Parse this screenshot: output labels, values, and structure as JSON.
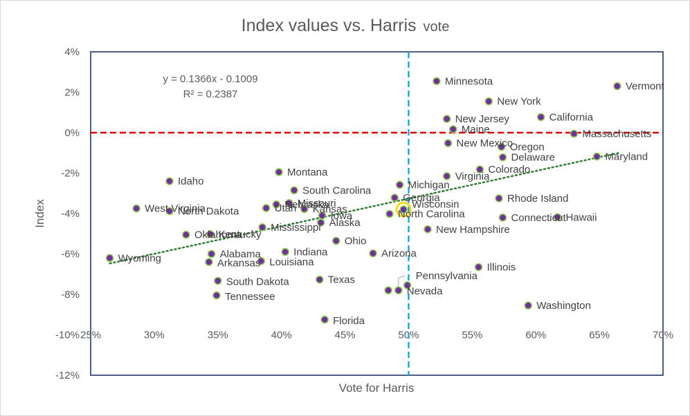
{
  "chart_data": {
    "type": "scatter",
    "title": "Index values vs. Harris",
    "title_suffix": "vote",
    "xlabel": "Vote for Harris",
    "ylabel": "Index",
    "xlim": [
      0.25,
      0.7
    ],
    "ylim": [
      -0.12,
      0.04
    ],
    "x_ticks": [
      0.25,
      0.3,
      0.35,
      0.4,
      0.45,
      0.5,
      0.55,
      0.6,
      0.65,
      0.7
    ],
    "y_ticks": [
      0.04,
      0.02,
      0.0,
      -0.02,
      -0.04,
      -0.06,
      -0.08,
      -0.1,
      -0.12
    ],
    "x_tick_labels": [
      "25%",
      "30%",
      "35%",
      "40%",
      "45%",
      "50%",
      "55%",
      "60%",
      "65%",
      "70%"
    ],
    "y_tick_labels": [
      "4%",
      "2%",
      "0%",
      "-2%",
      "-4%",
      "-6%",
      "-8%",
      "-10%",
      "-12%"
    ],
    "grid": false,
    "reference_lines": [
      {
        "axis": "y",
        "value": 0.0,
        "color": "#e00000",
        "style": "dashed"
      },
      {
        "axis": "x",
        "value": 0.5,
        "color": "#1ea8e0",
        "style": "dashed"
      }
    ],
    "trendline": {
      "equation": "y = 0.1366x - 0.1009",
      "r2": "R² = 0.2387",
      "slope": 0.1366,
      "intercept": -0.1009,
      "x_range": [
        0.265,
        0.665
      ],
      "color": "#2e7d32"
    },
    "marker_color": "#7030a0",
    "marker_outline": "#92d050",
    "highlight": {
      "name": "Wisconsin",
      "ring_color": "#ffd700"
    },
    "points": [
      {
        "name": "Vermont",
        "x": 0.664,
        "y": 0.023
      },
      {
        "name": "Minnesota",
        "x": 0.522,
        "y": 0.0255
      },
      {
        "name": "New York",
        "x": 0.563,
        "y": 0.0155
      },
      {
        "name": "California",
        "x": 0.604,
        "y": 0.0077
      },
      {
        "name": "New Jersey",
        "x": 0.53,
        "y": 0.0068
      },
      {
        "name": "Maine",
        "x": 0.535,
        "y": 0.0017
      },
      {
        "name": "Massachusetts",
        "x": 0.63,
        "y": -0.0005
      },
      {
        "name": "New Mexico",
        "x": 0.531,
        "y": -0.0052
      },
      {
        "name": "Oregon",
        "x": 0.573,
        "y": -0.007
      },
      {
        "name": "Delaware",
        "x": 0.574,
        "y": -0.0122
      },
      {
        "name": "Maryland",
        "x": 0.648,
        "y": -0.0118
      },
      {
        "name": "Colorado",
        "x": 0.556,
        "y": -0.0182
      },
      {
        "name": "Virginia",
        "x": 0.53,
        "y": -0.0215
      },
      {
        "name": "Montana",
        "x": 0.398,
        "y": -0.0195
      },
      {
        "name": "Idaho",
        "x": 0.312,
        "y": -0.024
      },
      {
        "name": "Michigan",
        "x": 0.493,
        "y": -0.0258
      },
      {
        "name": "South Carolina",
        "x": 0.41,
        "y": -0.0285
      },
      {
        "name": "Georgia",
        "x": 0.489,
        "y": -0.0322
      },
      {
        "name": "Rhode Island",
        "x": 0.571,
        "y": -0.0325
      },
      {
        "name": "Nebraska",
        "x": 0.396,
        "y": -0.0355
      },
      {
        "name": "Missouri",
        "x": 0.406,
        "y": -0.0348
      },
      {
        "name": "Utah",
        "x": 0.388,
        "y": -0.0373
      },
      {
        "name": "Kansas",
        "x": 0.418,
        "y": -0.0378
      },
      {
        "name": "West Virginia",
        "x": 0.286,
        "y": -0.0375
      },
      {
        "name": "North Dakota",
        "x": 0.312,
        "y": -0.0388
      },
      {
        "name": "Wisconsin",
        "x": 0.496,
        "y": -0.038
      },
      {
        "name": "Iowa",
        "x": 0.432,
        "y": -0.041
      },
      {
        "name": "North Carolina",
        "x": 0.485,
        "y": -0.0402
      },
      {
        "name": "Connecticut",
        "x": 0.574,
        "y": -0.042
      },
      {
        "name": "Hawaii",
        "x": 0.617,
        "y": -0.0418
      },
      {
        "name": "Alaska",
        "x": 0.431,
        "y": -0.0445
      },
      {
        "name": "Mississippi",
        "x": 0.385,
        "y": -0.0468
      },
      {
        "name": "New Hampshire",
        "x": 0.515,
        "y": -0.0478
      },
      {
        "name": "Oklahoma",
        "x": 0.325,
        "y": -0.0505
      },
      {
        "name": "Kentucky",
        "x": 0.344,
        "y": -0.0502
      },
      {
        "name": "Ohio",
        "x": 0.443,
        "y": -0.0535
      },
      {
        "name": "Indiana",
        "x": 0.403,
        "y": -0.059
      },
      {
        "name": "Alabama",
        "x": 0.345,
        "y": -0.06
      },
      {
        "name": "Arizona",
        "x": 0.472,
        "y": -0.0597
      },
      {
        "name": "Wyoming",
        "x": 0.265,
        "y": -0.062
      },
      {
        "name": "Louisiana",
        "x": 0.384,
        "y": -0.0635
      },
      {
        "name": "Arkansas",
        "x": 0.343,
        "y": -0.064
      },
      {
        "name": "Illinois",
        "x": 0.555,
        "y": -0.0665
      },
      {
        "name": "Texas",
        "x": 0.43,
        "y": -0.0727
      },
      {
        "name": "South Dakota",
        "x": 0.35,
        "y": -0.0733
      },
      {
        "name": "Pennsylvania",
        "x": 0.499,
        "y": -0.0755
      },
      {
        "name": "Nevada",
        "x": 0.484,
        "y": -0.078
      },
      {
        "name": "Nevada2",
        "x": 0.492,
        "y": -0.078
      },
      {
        "name": "Tennessee",
        "x": 0.349,
        "y": -0.0805
      },
      {
        "name": "Washington",
        "x": 0.594,
        "y": -0.0855
      },
      {
        "name": "Florida",
        "x": 0.434,
        "y": -0.0925
      }
    ],
    "labels": [
      {
        "text": "Vermont",
        "x": 0.664,
        "y": 0.023,
        "anchor": "right"
      },
      {
        "text": "Minnesota",
        "x": 0.522,
        "y": 0.0255,
        "anchor": "right"
      },
      {
        "text": "New York",
        "x": 0.563,
        "y": 0.0155,
        "anchor": "right"
      },
      {
        "text": "California",
        "x": 0.604,
        "y": 0.0077,
        "anchor": "right"
      },
      {
        "text": "New Jersey",
        "x": 0.53,
        "y": 0.0068,
        "anchor": "right"
      },
      {
        "text": "Maine",
        "x": 0.535,
        "y": 0.0017,
        "anchor": "right"
      },
      {
        "text": "Massachusetts",
        "x": 0.63,
        "y": -0.0005,
        "anchor": "right"
      },
      {
        "text": "New Mexico",
        "x": 0.531,
        "y": -0.0052,
        "anchor": "right"
      },
      {
        "text": "Oregon",
        "x": 0.573,
        "y": -0.007,
        "anchor": "right"
      },
      {
        "text": "Delaware",
        "x": 0.574,
        "y": -0.0122,
        "anchor": "right"
      },
      {
        "text": "Maryland",
        "x": 0.648,
        "y": -0.0118,
        "anchor": "right"
      },
      {
        "text": "Colorado",
        "x": 0.556,
        "y": -0.0182,
        "anchor": "right"
      },
      {
        "text": "Virginia",
        "x": 0.53,
        "y": -0.0215,
        "anchor": "right"
      },
      {
        "text": "Montana",
        "x": 0.398,
        "y": -0.0195,
        "anchor": "right"
      },
      {
        "text": "Idaho",
        "x": 0.312,
        "y": -0.024,
        "anchor": "right"
      },
      {
        "text": "Michigan",
        "x": 0.493,
        "y": -0.0258,
        "anchor": "right"
      },
      {
        "text": "South Carolina",
        "x": 0.41,
        "y": -0.0285,
        "anchor": "right"
      },
      {
        "text": "Georgia",
        "x": 0.489,
        "y": -0.0322,
        "anchor": "right"
      },
      {
        "text": "Rhode Island",
        "x": 0.571,
        "y": -0.0325,
        "anchor": "right"
      },
      {
        "text": "Nebraska",
        "x": 0.396,
        "y": -0.0355,
        "anchor": "right"
      },
      {
        "text": "Missouri",
        "x": 0.406,
        "y": -0.0348,
        "anchor": "right"
      },
      {
        "text": "Utah",
        "x": 0.388,
        "y": -0.0373,
        "anchor": "right"
      },
      {
        "text": "Kansas",
        "x": 0.418,
        "y": -0.0378,
        "anchor": "right"
      },
      {
        "text": "West Virginia",
        "x": 0.286,
        "y": -0.0375,
        "anchor": "right"
      },
      {
        "text": "North Dakota",
        "x": 0.312,
        "y": -0.0388,
        "anchor": "right"
      },
      {
        "text": "Wisconsin",
        "x": 0.496,
        "y": -0.0353,
        "anchor": "right"
      },
      {
        "text": "Iowa",
        "x": 0.432,
        "y": -0.041,
        "anchor": "right"
      },
      {
        "text": "North Carolina",
        "x": 0.485,
        "y": -0.0402,
        "anchor": "right"
      },
      {
        "text": "Connecticut",
        "x": 0.574,
        "y": -0.042,
        "anchor": "right"
      },
      {
        "text": "Hawaii",
        "x": 0.617,
        "y": -0.0418,
        "anchor": "right"
      },
      {
        "text": "Alaska",
        "x": 0.431,
        "y": -0.0445,
        "anchor": "right"
      },
      {
        "text": "Mississippi",
        "x": 0.385,
        "y": -0.0468,
        "anchor": "right"
      },
      {
        "text": "New Hampshire",
        "x": 0.515,
        "y": -0.0478,
        "anchor": "right"
      },
      {
        "text": "Oklahoma",
        "x": 0.325,
        "y": -0.0505,
        "anchor": "right"
      },
      {
        "text": "Kentucky",
        "x": 0.344,
        "y": -0.0502,
        "anchor": "right"
      },
      {
        "text": "Ohio",
        "x": 0.443,
        "y": -0.0535,
        "anchor": "right"
      },
      {
        "text": "Indiana",
        "x": 0.403,
        "y": -0.059,
        "anchor": "right"
      },
      {
        "text": "Alabama",
        "x": 0.345,
        "y": -0.06,
        "anchor": "right"
      },
      {
        "text": "Arizona",
        "x": 0.472,
        "y": -0.0597,
        "anchor": "right"
      },
      {
        "text": "Wyoming",
        "x": 0.265,
        "y": -0.062,
        "anchor": "right"
      },
      {
        "text": "Louisiana",
        "x": 0.384,
        "y": -0.064,
        "anchor": "right"
      },
      {
        "text": "Arkansas",
        "x": 0.343,
        "y": -0.0645,
        "anchor": "right"
      },
      {
        "text": "Illinois",
        "x": 0.555,
        "y": -0.0665,
        "anchor": "right"
      },
      {
        "text": "Texas",
        "x": 0.43,
        "y": -0.0727,
        "anchor": "right"
      },
      {
        "text": "South Dakota",
        "x": 0.35,
        "y": -0.0737,
        "anchor": "right"
      },
      {
        "text": "Pennsylvania",
        "x": 0.499,
        "y": -0.0707,
        "anchor": "right"
      },
      {
        "text": "Nevada",
        "x": 0.492,
        "y": -0.0783,
        "anchor": "right"
      },
      {
        "text": "Tennessee",
        "x": 0.349,
        "y": -0.081,
        "anchor": "right"
      },
      {
        "text": "Washington",
        "x": 0.594,
        "y": -0.0855,
        "anchor": "right"
      },
      {
        "text": "Florida",
        "x": 0.434,
        "y": -0.093,
        "anchor": "right"
      }
    ]
  }
}
